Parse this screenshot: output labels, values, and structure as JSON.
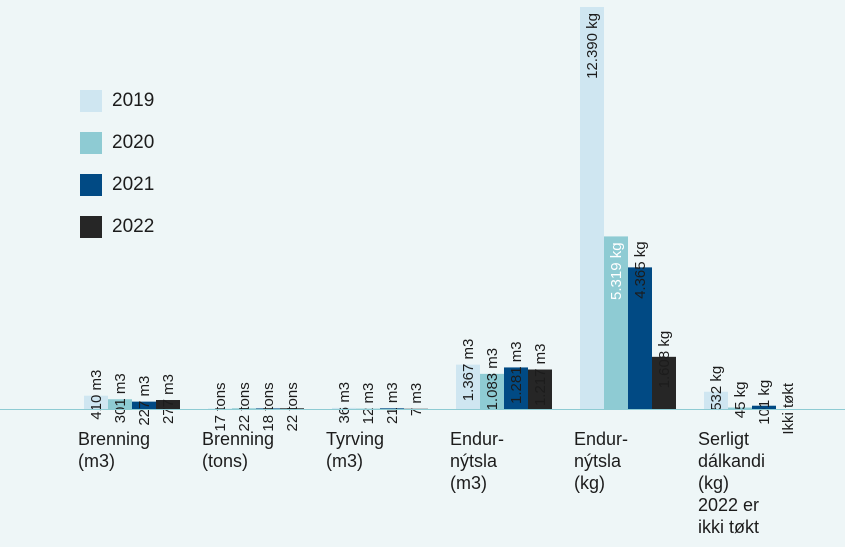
{
  "chart_data": {
    "type": "bar",
    "categories": [
      "Brenning\n(m3)",
      "Brenning\n(tons)",
      "Tyrving\n(m3)",
      "Endur-\nnýtsla\n(m3)",
      "Endur-\nnýtsla\n(kg)",
      "Serligt\ndálkandi\n(kg)\n2022 er\nikki tøkt"
    ],
    "series": [
      {
        "name": "2019",
        "color": "#cfe6f1",
        "values": [
          410,
          17,
          36,
          1367,
          12390,
          532
        ],
        "labels": [
          "410 m3",
          "17 tons",
          "36 m3",
          "1.367 m3",
          "12.390 kg",
          "532 kg"
        ]
      },
      {
        "name": "2020",
        "color": "#8ecbd3",
        "values": [
          301,
          22,
          12,
          1083,
          5319,
          45
        ],
        "labels": [
          "301 m3",
          "22 tons",
          "12 m3",
          "1.083 m3",
          "5.319 kg",
          "45 kg"
        ]
      },
      {
        "name": "2021",
        "color": "#014a84",
        "values": [
          227,
          18,
          21,
          1281,
          4365,
          101
        ],
        "labels": [
          "227 m3",
          "18 tons",
          "21 m3",
          "1.281 m3",
          "4.365 kg",
          "101 kg"
        ]
      },
      {
        "name": "2022",
        "color": "#262626",
        "values": [
          277,
          22,
          7,
          1217,
          1608,
          null
        ],
        "labels": [
          "277 m3",
          "22 tons",
          "7 m3",
          "1.217 m3",
          "1.608 kg",
          "Ikki tøkt"
        ]
      }
    ],
    "ylim": [
      0,
      12390
    ],
    "legend_position": "top-left",
    "grid": false,
    "colors": {
      "background": "#eef6f7",
      "baseline": "#8ecbd3"
    }
  }
}
